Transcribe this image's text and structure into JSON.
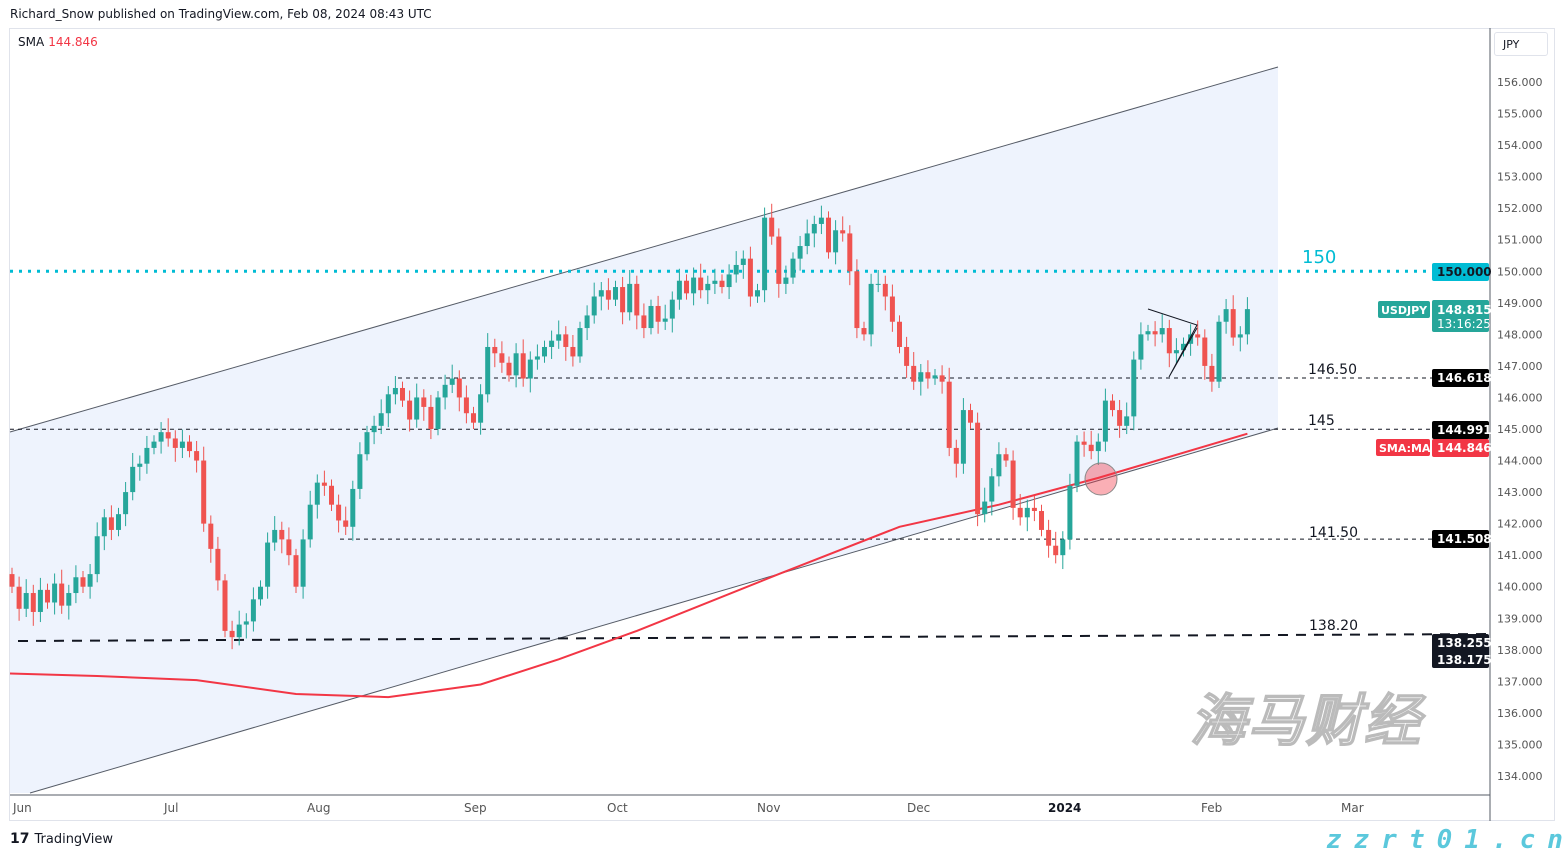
{
  "header": {
    "published": "Richard_Snow published on TradingView.com, Feb 08, 2024 08:43 UTC"
  },
  "legend": {
    "label": "SMA",
    "value": "144.846"
  },
  "price_scale": {
    "currency": "JPY",
    "ticks": [
      "156.000",
      "155.000",
      "154.000",
      "153.000",
      "152.000",
      "151.000",
      "150.000",
      "149.000",
      "148.000",
      "147.000",
      "146.000",
      "145.000",
      "144.000",
      "143.000",
      "142.000",
      "141.000",
      "140.000",
      "139.000",
      "138.000",
      "137.000",
      "136.000",
      "135.000",
      "134.000"
    ]
  },
  "badges": {
    "level_150": "150.000",
    "symbol": "USDJPY",
    "last_price": "148.815",
    "countdown": "13:16:25",
    "level_146": "146.618",
    "level_145": "144.991",
    "sma_label": "SMA:MA",
    "sma_value": "144.846",
    "level_141": "141.508",
    "level_138a": "138.255",
    "level_138b": "138.175"
  },
  "annotations": {
    "l150": "150",
    "l146": "146.50",
    "l145": "145",
    "l141": "141.50",
    "l138": "138.20"
  },
  "time_axis": [
    "Jun",
    "Jul",
    "Aug",
    "Sep",
    "Oct",
    "Nov",
    "Dec",
    "2024",
    "Feb",
    "Mar"
  ],
  "footer": {
    "brand": "TradingView",
    "logo": "17"
  },
  "watermark": {
    "cn": "海马财经",
    "url": "zzrt01.cn"
  },
  "colors": {
    "up": "#26a69a",
    "down": "#ef5350",
    "sma": "#f23645",
    "level150": "#00bcd4",
    "channel_fill": "#eef3fd"
  },
  "chart_data": {
    "type": "candlestick",
    "symbol": "USDJPY",
    "interval": "1D",
    "first_open": 140.4,
    "closes": [
      140.0,
      139.3,
      139.8,
      139.2,
      139.9,
      139.5,
      140.1,
      139.4,
      139.8,
      140.3,
      140.0,
      140.4,
      141.6,
      142.2,
      141.8,
      142.3,
      143.0,
      143.8,
      143.9,
      144.4,
      144.6,
      144.9,
      144.7,
      144.4,
      144.6,
      144.3,
      144.0,
      142.0,
      141.2,
      140.2,
      138.6,
      138.4,
      138.8,
      138.9,
      139.6,
      140.0,
      141.4,
      141.8,
      141.5,
      141.0,
      140.0,
      141.5,
      142.6,
      143.3,
      143.2,
      142.6,
      142.1,
      141.9,
      143.1,
      144.2,
      144.9,
      145.1,
      145.5,
      146.1,
      146.3,
      145.9,
      145.3,
      146.0,
      145.7,
      145.0,
      146.0,
      146.4,
      146.6,
      146.0,
      145.5,
      145.2,
      146.1,
      147.6,
      147.4,
      147.1,
      146.7,
      147.4,
      146.6,
      147.2,
      147.3,
      147.6,
      147.8,
      148.0,
      147.6,
      147.3,
      148.2,
      148.6,
      149.2,
      149.4,
      149.1,
      149.5,
      148.7,
      149.6,
      148.6,
      148.2,
      148.9,
      148.4,
      148.5,
      149.1,
      149.7,
      149.3,
      149.8,
      149.4,
      149.6,
      149.7,
      149.5,
      149.9,
      150.2,
      150.4,
      149.2,
      149.4,
      151.7,
      151.1,
      149.6,
      149.8,
      150.4,
      150.8,
      151.2,
      151.5,
      151.7,
      150.6,
      151.3,
      151.2,
      150.0,
      148.2,
      148.0,
      149.6,
      149.6,
      149.2,
      148.4,
      147.6,
      147.0,
      146.5,
      146.8,
      146.6,
      146.7,
      146.5,
      144.4,
      143.9,
      145.6,
      145.2,
      142.3,
      142.7,
      143.5,
      144.2,
      144.0,
      142.5,
      142.2,
      142.5,
      142.4,
      141.8,
      141.3,
      141.0,
      141.5,
      143.2,
      144.6,
      144.5,
      144.3,
      144.6,
      145.9,
      145.6,
      145.1,
      145.4,
      147.2,
      148.0,
      148.1,
      148.0,
      148.2,
      147.4,
      147.5,
      147.7,
      148.0,
      147.9,
      147.0,
      146.5,
      148.4,
      148.8,
      147.9,
      148.0,
      148.8
    ],
    "sma": {
      "name": "SMA",
      "bars": [
        0,
        12,
        26,
        40,
        53,
        66,
        77,
        88,
        108,
        125,
        139,
        153,
        174
      ],
      "values": [
        137.25,
        137.17,
        137.04,
        136.6,
        136.5,
        136.9,
        137.7,
        138.6,
        140.4,
        141.9,
        142.6,
        143.45,
        144.85
      ]
    },
    "levels": [
      150.0,
      146.618,
      144.991,
      141.508,
      138.255
    ],
    "ylim": [
      133.7,
      157.0
    ]
  }
}
